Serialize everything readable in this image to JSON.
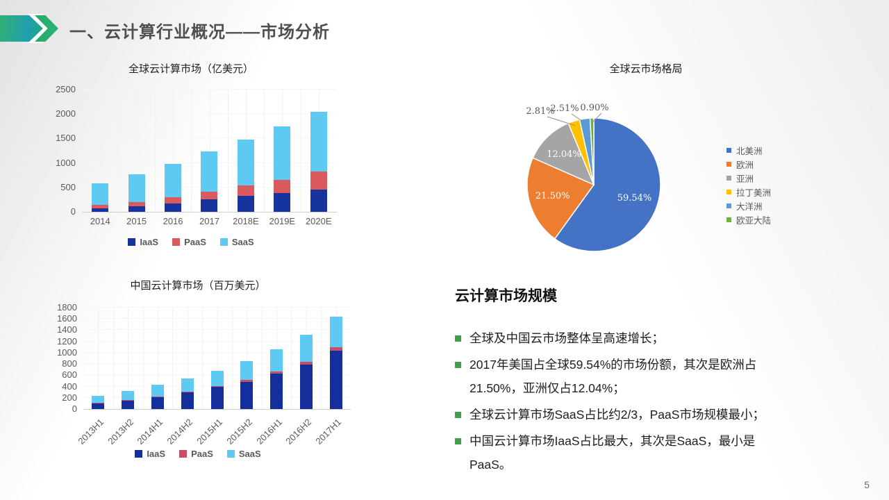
{
  "slide": {
    "title": "一、云计算行业概况——市场分析",
    "page_number": "5"
  },
  "theme": {
    "accent_gradient_start": "#33B074",
    "accent_gradient_end": "#1E9FB0",
    "bullet_green": "#3FA047",
    "title_gray": "#4F4F4F"
  },
  "text_panel": {
    "heading": "云计算市场规模",
    "bullets": [
      "全球及中国云市场整体呈高速增长；",
      "2017年美国占全球59.54%的市场份额，其次是欧洲占21.50%，亚洲仅占12.04%；",
      "全球云计算市场SaaS占比约2/3，PaaS市场规模最小；",
      "中国云计算市场IaaS占比最大，其次是SaaS，最小是PaaS。"
    ]
  },
  "chart_data": [
    {
      "id": "global",
      "type": "bar",
      "stacked": true,
      "title": "全球云计算市场（亿美元）",
      "categories": [
        "2014",
        "2015",
        "2016",
        "2017",
        "2018E",
        "2019E",
        "2020E"
      ],
      "series": [
        {
          "name": "IaaS",
          "color": "#17339E",
          "values": [
            70,
            120,
            175,
            250,
            320,
            390,
            460
          ]
        },
        {
          "name": "PaaS",
          "color": "#DB5A5E",
          "values": [
            75,
            85,
            125,
            165,
            215,
            270,
            360
          ]
        },
        {
          "name": "SaaS",
          "color": "#5EC9F2",
          "values": [
            445,
            565,
            685,
            815,
            945,
            1090,
            1225
          ]
        }
      ],
      "ylim": [
        0,
        2500
      ],
      "yticks": [
        0,
        500,
        1000,
        1500,
        2000,
        2500
      ],
      "legend_position": "bottom",
      "grid": "faint"
    },
    {
      "id": "global-pie",
      "type": "pie",
      "title": "全球云市场格局",
      "labels": [
        "北美洲",
        "欧洲",
        "亚洲",
        "拉丁美洲",
        "大洋洲",
        "欧亚大陆"
      ],
      "values": [
        59.54,
        21.5,
        12.04,
        2.81,
        2.51,
        0.9
      ],
      "display_labels": [
        "59.54%",
        "21.50%",
        "12.04%",
        "2.81%",
        "2.51%",
        "0.90%"
      ],
      "colors": [
        "#4472C4",
        "#ED7D31",
        "#A5A5A5",
        "#FFC000",
        "#5B9BD5",
        "#70AD47"
      ],
      "legend_position": "right"
    },
    {
      "id": "china",
      "type": "bar",
      "stacked": true,
      "title": "中国云计算市场（百万美元）",
      "categories": [
        "2013H1",
        "2013H2",
        "2014H1",
        "2014H2",
        "2015H1",
        "2015H2",
        "2016H1",
        "2016H2",
        "2017H1"
      ],
      "series": [
        {
          "name": "IaaS",
          "color": "#142F9B",
          "values": [
            100,
            145,
            210,
            290,
            395,
            487,
            630,
            795,
            1035
          ]
        },
        {
          "name": "PaaS",
          "color": "#C94F66",
          "values": [
            10,
            12,
            12,
            15,
            18,
            30,
            32,
            45,
            58
          ]
        },
        {
          "name": "SaaS",
          "color": "#5EC9F2",
          "values": [
            130,
            168,
            208,
            238,
            262,
            338,
            398,
            482,
            550
          ]
        }
      ],
      "ylim": [
        0,
        1800
      ],
      "yticks": [
        0,
        200,
        400,
        600,
        800,
        1000,
        1200,
        1400,
        1600,
        1800
      ],
      "legend_position": "bottom",
      "grid": "faint"
    }
  ]
}
